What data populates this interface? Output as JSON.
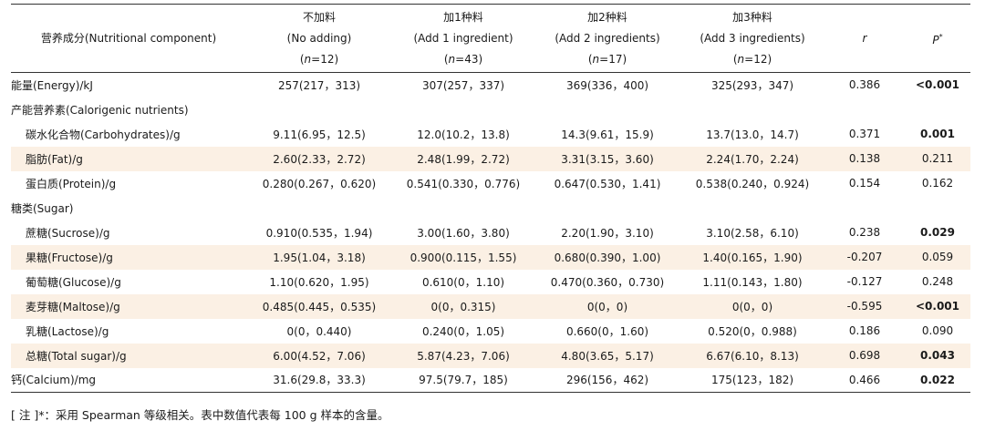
{
  "table": {
    "headers": {
      "component": "营养成分(Nutritional component)",
      "groups": [
        {
          "zh": "不加料",
          "en": "(No adding)",
          "n_var": "n",
          "n_val": "=12"
        },
        {
          "zh": "加1种料",
          "en": "(Add 1 ingredient)",
          "n_var": "n",
          "n_val": "=43"
        },
        {
          "zh": "加2种料",
          "en": "(Add 2 ingredients)",
          "n_var": "n",
          "n_val": "=17"
        },
        {
          "zh": "加3种料",
          "en": "(Add 3 ingredients)",
          "n_var": "n",
          "n_val": "=12"
        }
      ],
      "r": "r",
      "p": "P",
      "p_sup": "*"
    },
    "rows": [
      {
        "label": "能量(Energy)/kJ",
        "values": [
          "257(217，313)",
          "307(257，337)",
          "369(336，400)",
          "325(293，347)"
        ],
        "r": "0.386",
        "p": "<0.001",
        "bold": true
      },
      {
        "label": "产能营养素(Calorigenic nutrients)"
      },
      {
        "label": "碳水化合物(Carbohydrates)/g",
        "values": [
          "9.11(6.95，12.5)",
          "12.0(10.2，13.8)",
          "14.3(9.61，15.9)",
          "13.7(13.0，14.7)"
        ],
        "r": "0.371",
        "p": "0.001",
        "bold": true
      },
      {
        "label": "脂肪(Fat)/g",
        "values": [
          "2.60(2.33，2.72)",
          "2.48(1.99，2.72)",
          "3.31(3.15，3.60)",
          "2.24(1.70，2.24)"
        ],
        "r": "0.138",
        "p": "0.211",
        "bold": false
      },
      {
        "label": "蛋白质(Protein)/g",
        "values": [
          "0.280(0.267，0.620)",
          "0.541(0.330，0.776)",
          "0.647(0.530，1.41)",
          "0.538(0.240，0.924)"
        ],
        "r": "0.154",
        "p": "0.162",
        "bold": false
      },
      {
        "label": "糖类(Sugar)"
      },
      {
        "label": "蔗糖(Sucrose)/g",
        "values": [
          "0.910(0.535，1.94)",
          "3.00(1.60，3.80)",
          "2.20(1.90，3.10)",
          "3.10(2.58，6.10)"
        ],
        "r": "0.238",
        "p": "0.029",
        "bold": true
      },
      {
        "label": "果糖(Fructose)/g",
        "values": [
          "1.95(1.04，3.18)",
          "0.900(0.115，1.55)",
          "0.680(0.390，1.00)",
          "1.40(0.165，1.90)"
        ],
        "r": "-0.207",
        "p": "0.059",
        "bold": false
      },
      {
        "label": "葡萄糖(Glucose)/g",
        "values": [
          "1.10(0.620，1.95)",
          "0.610(0，1.10)",
          "0.470(0.360，0.730)",
          "1.11(0.143，1.80)"
        ],
        "r": "-0.127",
        "p": "0.248",
        "bold": false
      },
      {
        "label": "麦芽糖(Maltose)/g",
        "values": [
          "0.485(0.445，0.535)",
          "0(0，0.315)",
          "0(0，0)",
          "0(0，0)"
        ],
        "r": "-0.595",
        "p": "<0.001",
        "bold": true
      },
      {
        "label": "乳糖(Lactose)/g",
        "values": [
          "0(0，0.440)",
          "0.240(0，1.05)",
          "0.660(0，1.60)",
          "0.520(0，0.988)"
        ],
        "r": "0.186",
        "p": "0.090",
        "bold": false
      },
      {
        "label": "总糖(Total sugar)/g",
        "values": [
          "6.00(4.52，7.06)",
          "5.87(4.23，7.06)",
          "4.80(3.65，5.17)",
          "6.67(6.10，8.13)"
        ],
        "r": "0.698",
        "p": "0.043",
        "bold": true
      },
      {
        "label": "钙(Calcium)/mg",
        "values": [
          "31.6(29.8，33.3)",
          "97.5(79.7，185)",
          "296(156，462)",
          "175(123，182)"
        ],
        "r": "0.466",
        "p": "0.022",
        "bold": true
      }
    ]
  },
  "note": "[ 注 ]*：采用 Spearman 等级相关。表中数值代表每 100 g 样本的含量。",
  "colors": {
    "shade": "#fbf0e4",
    "rule": "#333333",
    "text": "#1a1a1a"
  }
}
